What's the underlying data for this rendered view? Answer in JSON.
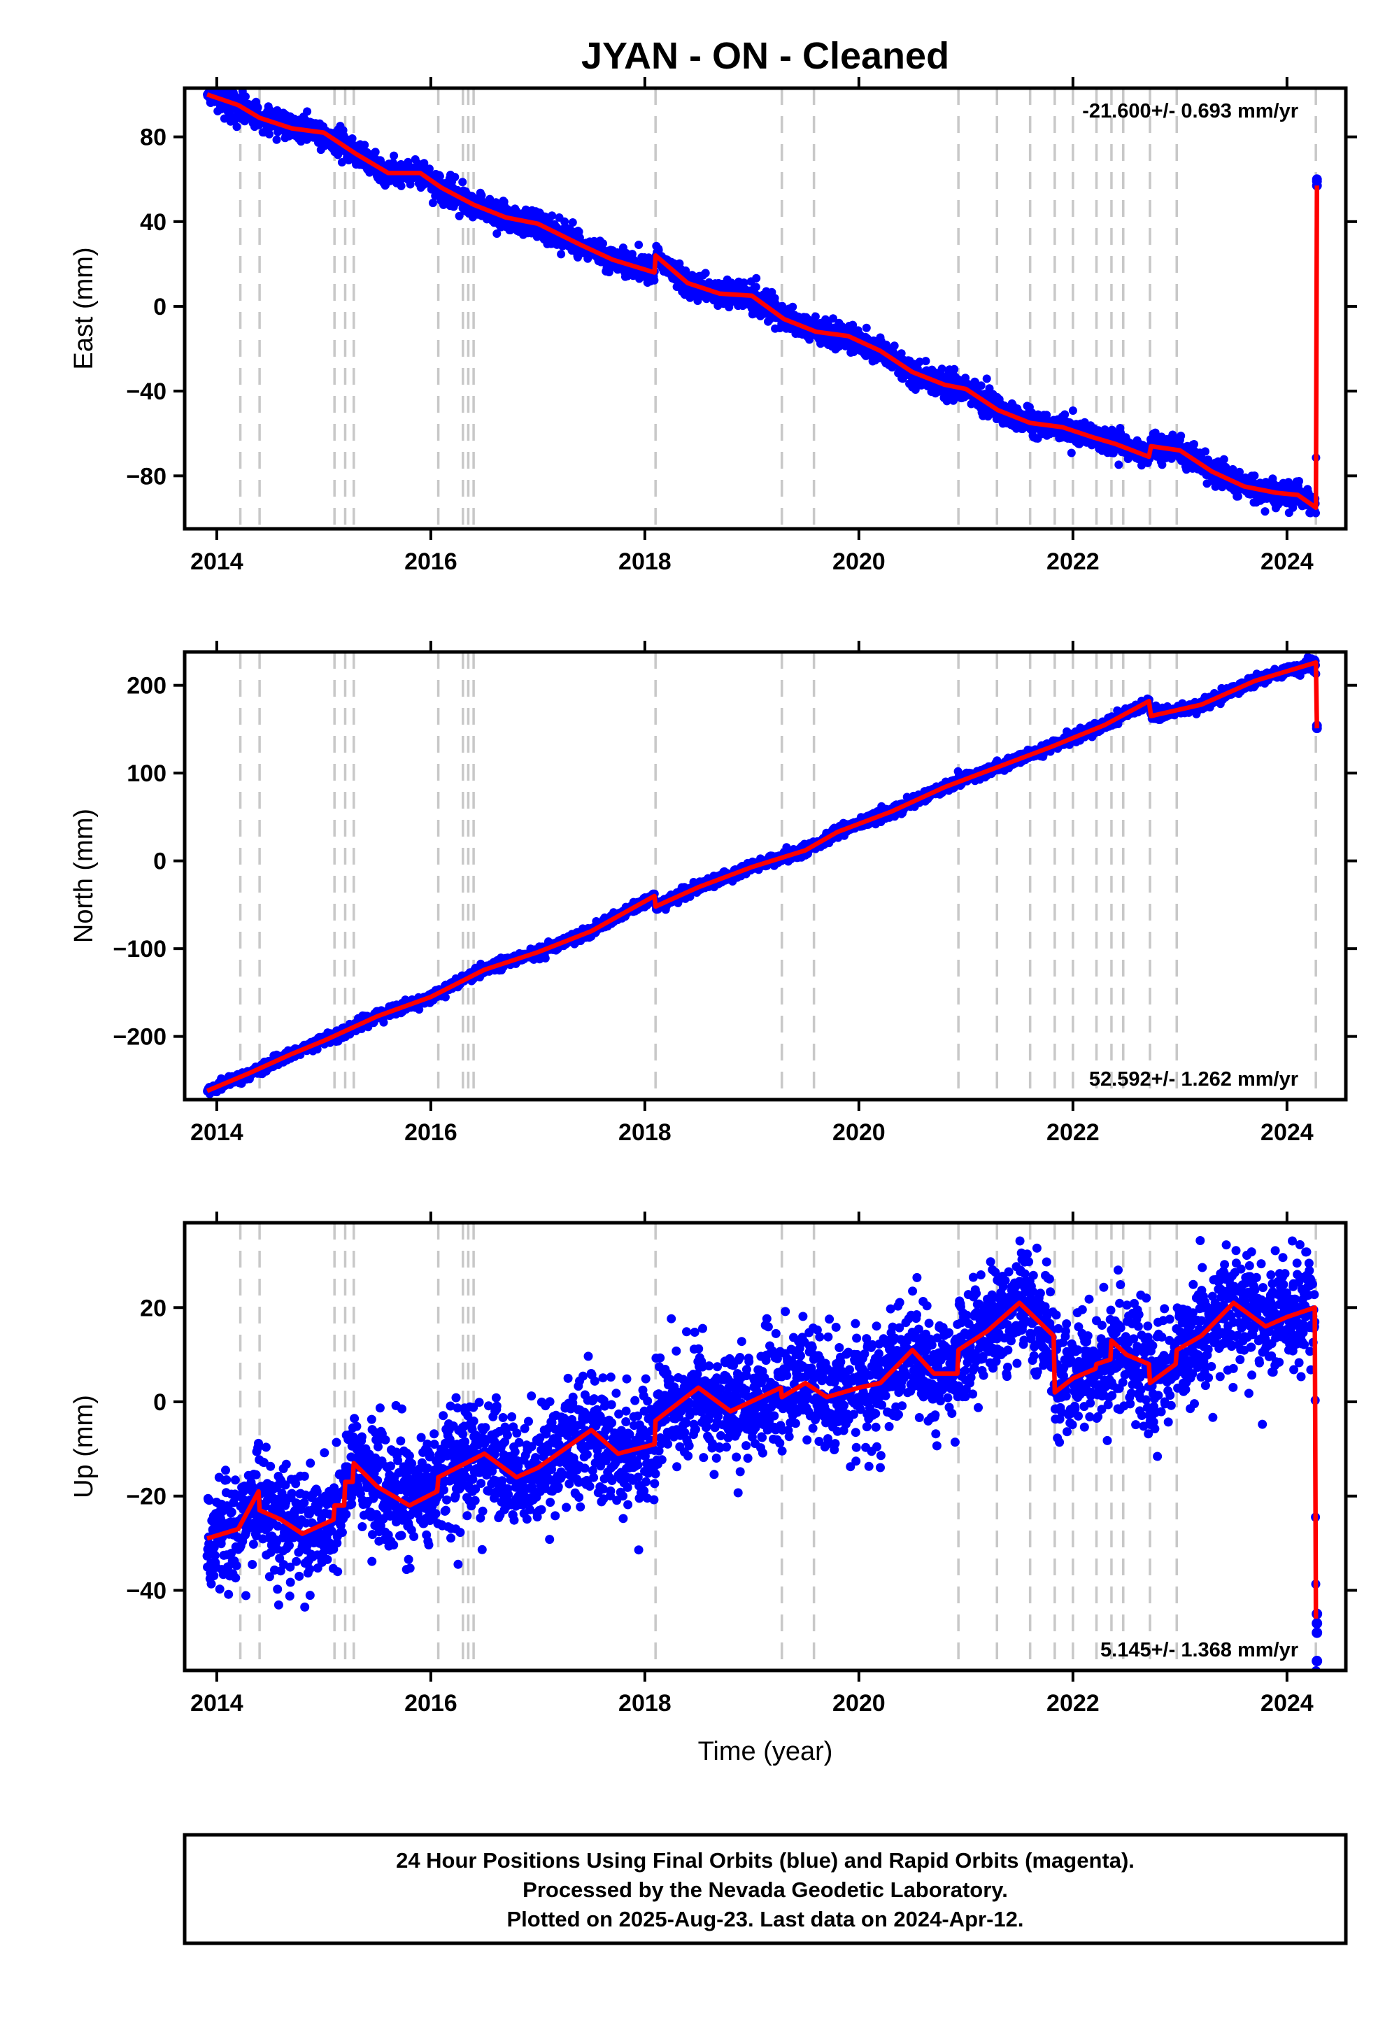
{
  "figure": {
    "title": "JYAN  - ON - Cleaned",
    "xlabel": "Time (year)",
    "footer_lines": [
      "24 Hour Positions Using Final Orbits (blue) and Rapid Orbits (magenta).",
      "Processed by the Nevada Geodetic Laboratory.",
      "Plotted on 2025-Aug-23. Last data on 2024-Apr-12."
    ],
    "colors": {
      "data": "#0000ff",
      "model": "#ff0000",
      "event_line": "#c8c8c8",
      "frame": "#000000"
    }
  },
  "chart_data": [
    {
      "type": "scatter",
      "ylabel": "East (mm)",
      "rate_text": "-21.600+/- 0.693 mm/yr",
      "rate_position": "top-right",
      "xlim": [
        2013.7,
        2024.55
      ],
      "ylim": [
        -105,
        103
      ],
      "xticks": [
        2014,
        2016,
        2018,
        2020,
        2022,
        2024
      ],
      "xticklabels": [
        "2014",
        "2016",
        "2018",
        "2020",
        "2022",
        "2024"
      ],
      "yticks": [
        -80,
        -40,
        0,
        40,
        80
      ],
      "yticklabels": [
        "−80",
        "−40",
        "0",
        "40",
        "80"
      ],
      "event_lines_x": [
        2014.22,
        2014.4,
        2015.1,
        2015.2,
        2015.28,
        2016.07,
        2016.3,
        2016.35,
        2016.4,
        2018.1,
        2019.28,
        2019.58,
        2020.93,
        2021.29,
        2021.6,
        2021.83,
        2022.0,
        2022.22,
        2022.36,
        2022.47,
        2022.72,
        2022.97,
        2024.27
      ],
      "model_line": {
        "x": [
          2013.91,
          2014.2,
          2014.4,
          2014.7,
          2015.0,
          2015.3,
          2015.6,
          2015.9,
          2016.1,
          2016.4,
          2016.7,
          2017.0,
          2017.4,
          2017.7,
          2018.09,
          2018.1,
          2018.4,
          2018.7,
          2019.0,
          2019.3,
          2019.6,
          2019.9,
          2020.2,
          2020.5,
          2020.8,
          2021.0,
          2021.3,
          2021.6,
          2021.9,
          2022.2,
          2022.4,
          2022.71,
          2022.73,
          2023.0,
          2023.3,
          2023.6,
          2023.9,
          2024.1,
          2024.27,
          2024.28
        ],
        "y": [
          100,
          95,
          89,
          84,
          82,
          72,
          63,
          63,
          56,
          48,
          42,
          39,
          29,
          22,
          16,
          24,
          11,
          6,
          5,
          -6,
          -12,
          -14,
          -21,
          -31,
          -37,
          -39,
          -49,
          -55,
          -57,
          -62,
          -65,
          -71,
          -66,
          -68,
          -78,
          -85,
          -88,
          -89,
          -95,
          57
        ]
      },
      "data_series": {
        "name": "Final Orbits",
        "points_per_day": 1,
        "x_range": [
          2013.91,
          2024.28
        ],
        "scatter_mm": 3,
        "final_values": {
          "x": [
            2024.28,
            2024.28,
            2024.28
          ],
          "y": [
            57,
            59,
            60
          ]
        }
      }
    },
    {
      "type": "scatter",
      "ylabel": "North (mm)",
      "rate_text": "52.592+/- 1.262 mm/yr",
      "rate_position": "bottom-right",
      "xlim": [
        2013.7,
        2024.55
      ],
      "ylim": [
        -272,
        238
      ],
      "xticks": [
        2014,
        2016,
        2018,
        2020,
        2022,
        2024
      ],
      "xticklabels": [
        "2014",
        "2016",
        "2018",
        "2020",
        "2022",
        "2024"
      ],
      "yticks": [
        -200,
        -100,
        0,
        100,
        200
      ],
      "yticklabels": [
        "−200",
        "−100",
        "0",
        "100",
        "200"
      ],
      "event_lines_x": [
        2014.22,
        2014.4,
        2015.1,
        2015.2,
        2015.28,
        2016.07,
        2016.3,
        2016.35,
        2016.4,
        2018.1,
        2019.28,
        2019.58,
        2020.93,
        2021.29,
        2021.6,
        2021.83,
        2022.0,
        2022.22,
        2022.36,
        2022.47,
        2022.72,
        2022.97,
        2024.27
      ],
      "model_line": {
        "x": [
          2013.91,
          2014.3,
          2014.7,
          2015.0,
          2015.5,
          2016.0,
          2016.5,
          2017.0,
          2017.5,
          2018.09,
          2018.1,
          2018.5,
          2019.0,
          2019.5,
          2019.8,
          2020.3,
          2020.8,
          2021.3,
          2021.8,
          2022.3,
          2022.71,
          2022.73,
          2023.2,
          2023.7,
          2024.27,
          2024.28
        ],
        "y": [
          -262,
          -242,
          -220,
          -205,
          -177,
          -155,
          -124,
          -104,
          -80,
          -40,
          -52,
          -30,
          -7,
          12,
          33,
          56,
          84,
          107,
          130,
          155,
          182,
          165,
          178,
          205,
          226,
          151
        ]
      },
      "data_series": {
        "name": "Final Orbits",
        "points_per_day": 1,
        "x_range": [
          2013.91,
          2024.28
        ],
        "scatter_mm": 3,
        "final_values": {
          "x": [
            2024.28,
            2024.28
          ],
          "y": [
            151,
            154
          ]
        }
      }
    },
    {
      "type": "scatter",
      "ylabel": "Up (mm)",
      "rate_text": "5.145+/- 1.368 mm/yr",
      "rate_position": "bottom-right",
      "xlim": [
        2013.7,
        2024.55
      ],
      "ylim": [
        -57,
        38
      ],
      "xticks": [
        2014,
        2016,
        2018,
        2020,
        2022,
        2024
      ],
      "xticklabels": [
        "2014",
        "2016",
        "2018",
        "2020",
        "2022",
        "2024"
      ],
      "yticks": [
        -40,
        -20,
        0,
        20
      ],
      "yticklabels": [
        "−40",
        "−20",
        "0",
        "20"
      ],
      "event_lines_x": [
        2014.22,
        2014.4,
        2015.1,
        2015.2,
        2015.28,
        2016.07,
        2016.3,
        2016.35,
        2016.4,
        2018.1,
        2019.28,
        2019.58,
        2020.93,
        2021.29,
        2021.6,
        2021.83,
        2022.0,
        2022.22,
        2022.36,
        2022.47,
        2022.72,
        2022.97,
        2024.27
      ],
      "model_line": {
        "x": [
          2013.91,
          2014.2,
          2014.39,
          2014.4,
          2014.6,
          2014.8,
          2015.09,
          2015.1,
          2015.19,
          2015.2,
          2015.27,
          2015.28,
          2015.5,
          2015.8,
          2016.06,
          2016.07,
          2016.5,
          2016.8,
          2017.0,
          2017.5,
          2017.75,
          2018.09,
          2018.1,
          2018.5,
          2018.8,
          2019.27,
          2019.28,
          2019.5,
          2019.7,
          2020.0,
          2020.2,
          2020.5,
          2020.7,
          2020.92,
          2020.93,
          2021.2,
          2021.5,
          2021.82,
          2021.83,
          2022.0,
          2022.21,
          2022.22,
          2022.35,
          2022.36,
          2022.5,
          2022.71,
          2022.72,
          2022.96,
          2022.97,
          2023.2,
          2023.5,
          2023.8,
          2024.0,
          2024.26,
          2024.27
        ],
        "y": [
          -29,
          -27,
          -19,
          -23,
          -25,
          -28,
          -25,
          -22,
          -22,
          -17,
          -17,
          -13,
          -18,
          -22,
          -19,
          -16,
          -11,
          -16,
          -14,
          -6,
          -11,
          -9,
          -4,
          3,
          -2,
          3,
          1,
          4,
          1,
          3,
          4,
          11,
          6,
          6,
          11,
          15,
          21,
          14,
          2,
          5,
          7,
          8,
          9,
          13,
          10,
          8,
          4,
          8,
          11,
          14,
          21,
          16,
          18,
          20,
          -46
        ]
      },
      "data_series": {
        "name": "Final Orbits",
        "points_per_day": 1,
        "x_range": [
          2013.91,
          2024.28
        ],
        "scatter_mm": 6,
        "final_values": {
          "x": [
            2024.28,
            2024.28,
            2024.28,
            2024.28
          ],
          "y": [
            -45,
            -47,
            -49,
            -55
          ]
        }
      }
    }
  ]
}
